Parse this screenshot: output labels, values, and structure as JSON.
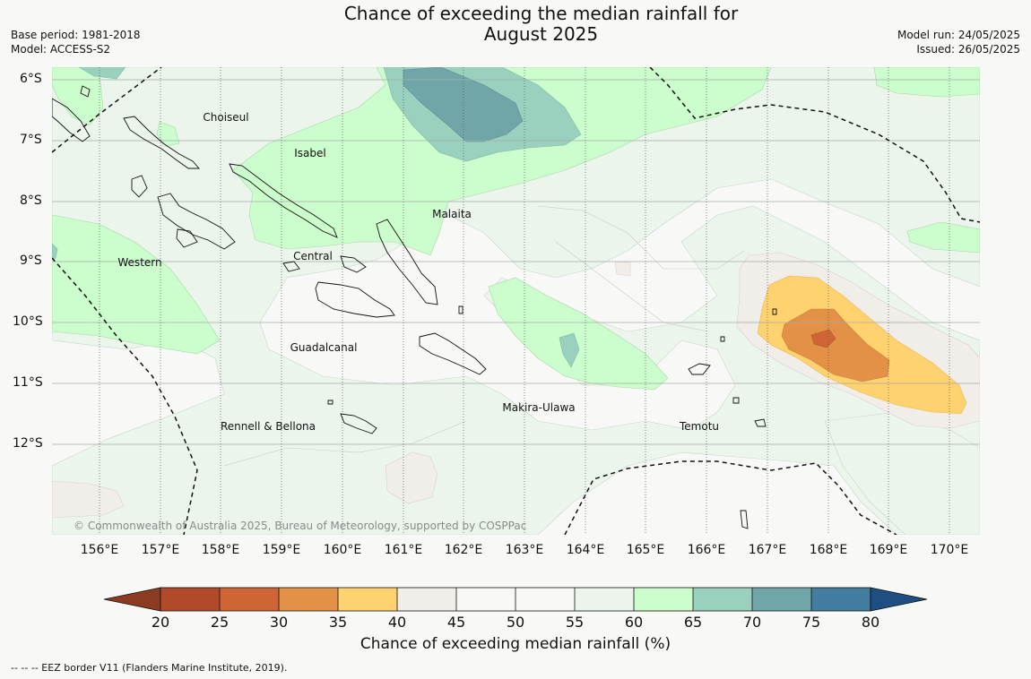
{
  "title_line1": "Chance of exceeding the median rainfall for",
  "title_line2": "August 2025",
  "base_period": "Base period: 1981-2018",
  "model": "Model: ACCESS-S2",
  "model_run": "Model run: 24/05/2025",
  "issued": "Issued: 26/05/2025",
  "copyright": "© Commonwealth of Australia 2025, Bureau of Meteorology, supported by COSPPac",
  "lon_labels": [
    "156°E",
    "157°E",
    "158°E",
    "159°E",
    "160°E",
    "161°E",
    "162°E",
    "163°E",
    "164°E",
    "165°E",
    "166°E",
    "167°E",
    "168°E",
    "169°E",
    "170°E"
  ],
  "lat_labels": [
    "6°S",
    "7°S",
    "8°S",
    "9°S",
    "10°S",
    "11°S",
    "12°S"
  ],
  "regions": [
    "Choiseul",
    "Isabel",
    "Malaita",
    "Western",
    "Central",
    "Guadalcanal",
    "Makira-Ulawa",
    "Rennell & Bellona",
    "Temotu"
  ],
  "colorbar": {
    "label": "Chance of exceeding median rainfall (%)",
    "ticks": [
      "20",
      "25",
      "30",
      "35",
      "40",
      "45",
      "50",
      "55",
      "60",
      "65",
      "70",
      "75",
      "80"
    ],
    "colors": [
      "#b04a2b",
      "#cf6534",
      "#e29147",
      "#fed26f",
      "#f1ede8",
      "#f8f9f7",
      "#f8f9f7",
      "#ebf5eb",
      "#ccfdcc",
      "#9ad1be",
      "#70a6a8",
      "#427c9e"
    ],
    "low_extend_color": "#8c3a22",
    "high_extend_color": "#1f4f82"
  },
  "footnote": "--  --  -- EEZ border V11 (Flanders Marine Institute, 2019)."
}
